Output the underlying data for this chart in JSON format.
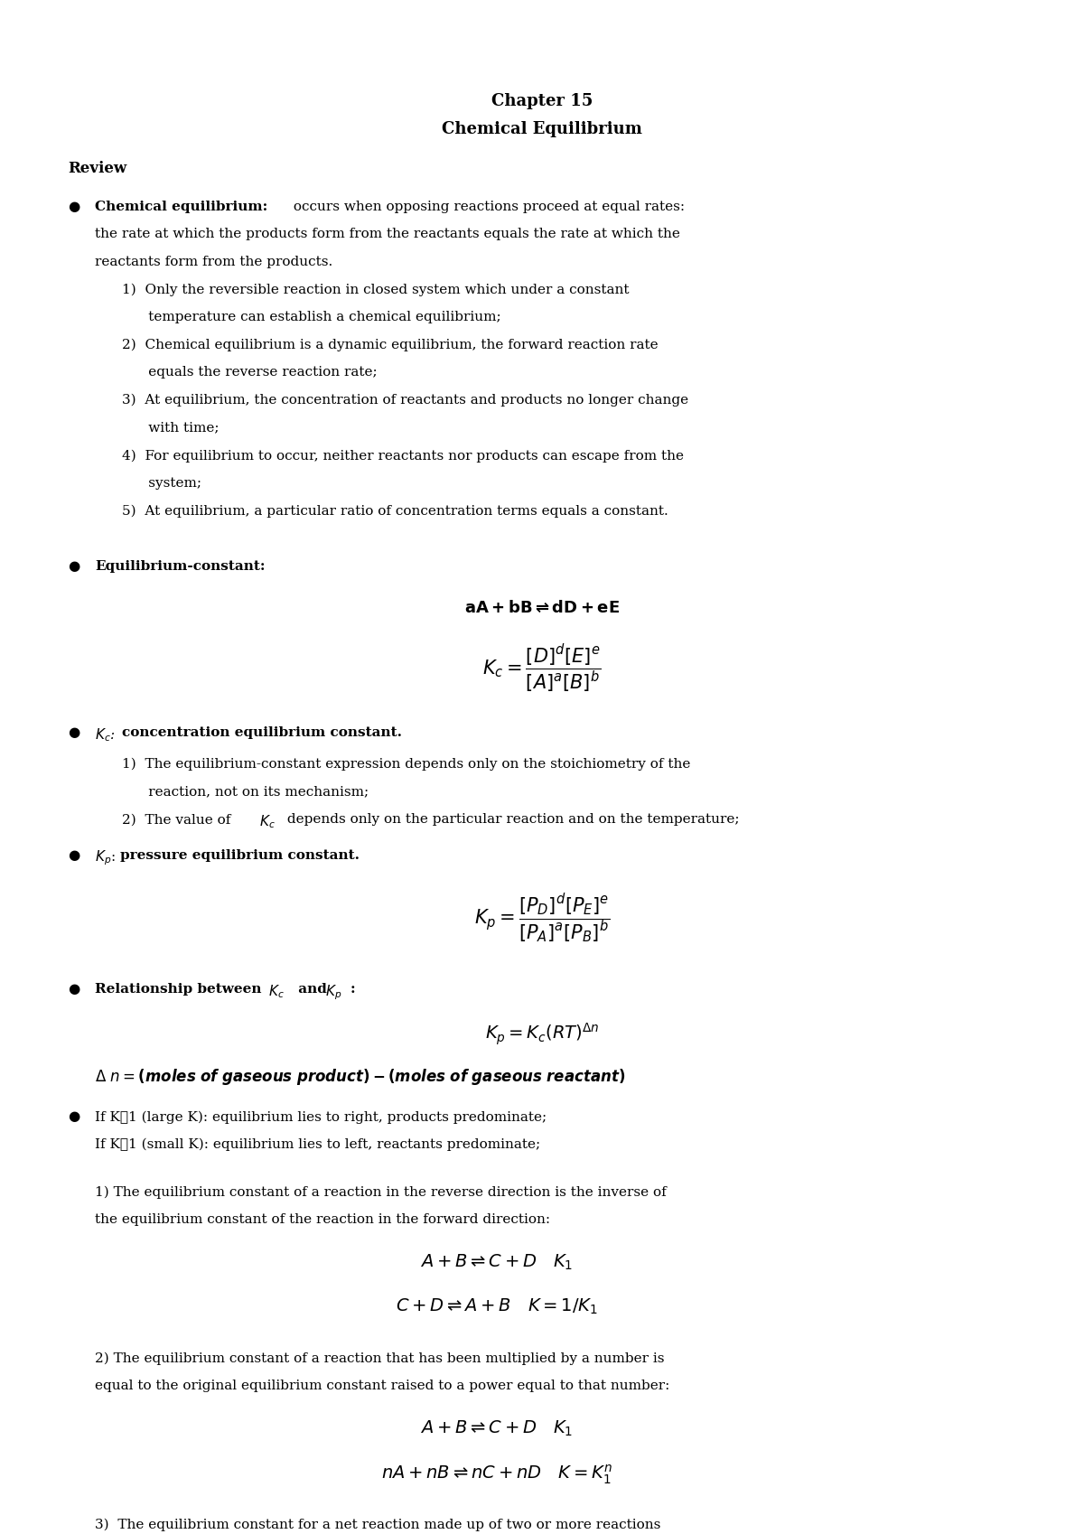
{
  "background_color": "#ffffff",
  "title_line1": "Chapter 15",
  "title_line2": "Chemical Equilibrium",
  "review_label": "Review",
  "content": "chemical_equilibrium_review"
}
